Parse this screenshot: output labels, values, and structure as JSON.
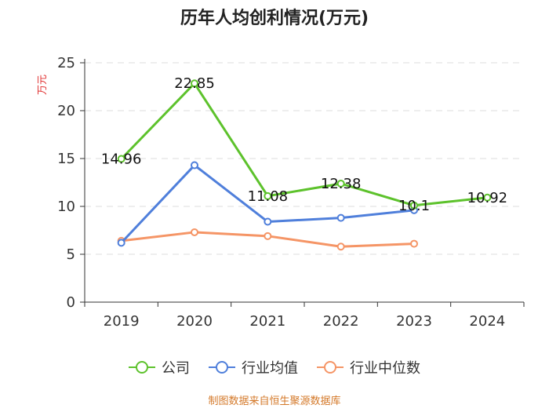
{
  "chart_data": {
    "type": "line",
    "title": "历年人均创利情况(万元)",
    "ylabel": "万元",
    "xlabel": "",
    "categories": [
      "2019",
      "2020",
      "2021",
      "2022",
      "2023",
      "2024"
    ],
    "ylim": [
      0,
      25
    ],
    "yticks": [
      0,
      5,
      10,
      15,
      20,
      25
    ],
    "grid": true,
    "legend_position": "bottom",
    "series": [
      {
        "name": "公司",
        "color": "#5dc22c",
        "values": [
          14.96,
          22.85,
          11.08,
          12.38,
          10.1,
          10.92
        ],
        "labels": [
          "14.96",
          "22.85",
          "11.08",
          "12.38",
          "10.1",
          "10.92"
        ]
      },
      {
        "name": "行业均值",
        "color": "#4f7fdb",
        "values": [
          6.2,
          14.3,
          8.4,
          8.8,
          9.6,
          null
        ]
      },
      {
        "name": "行业中位数",
        "color": "#f59566",
        "values": [
          6.4,
          7.3,
          6.9,
          5.8,
          6.1,
          null
        ]
      }
    ]
  },
  "source": "制图数据来自恒生聚源数据库",
  "colors": {
    "axis": "#333333",
    "grid": "#dddddd",
    "unit": "#e03030",
    "source": "#d4792a"
  }
}
